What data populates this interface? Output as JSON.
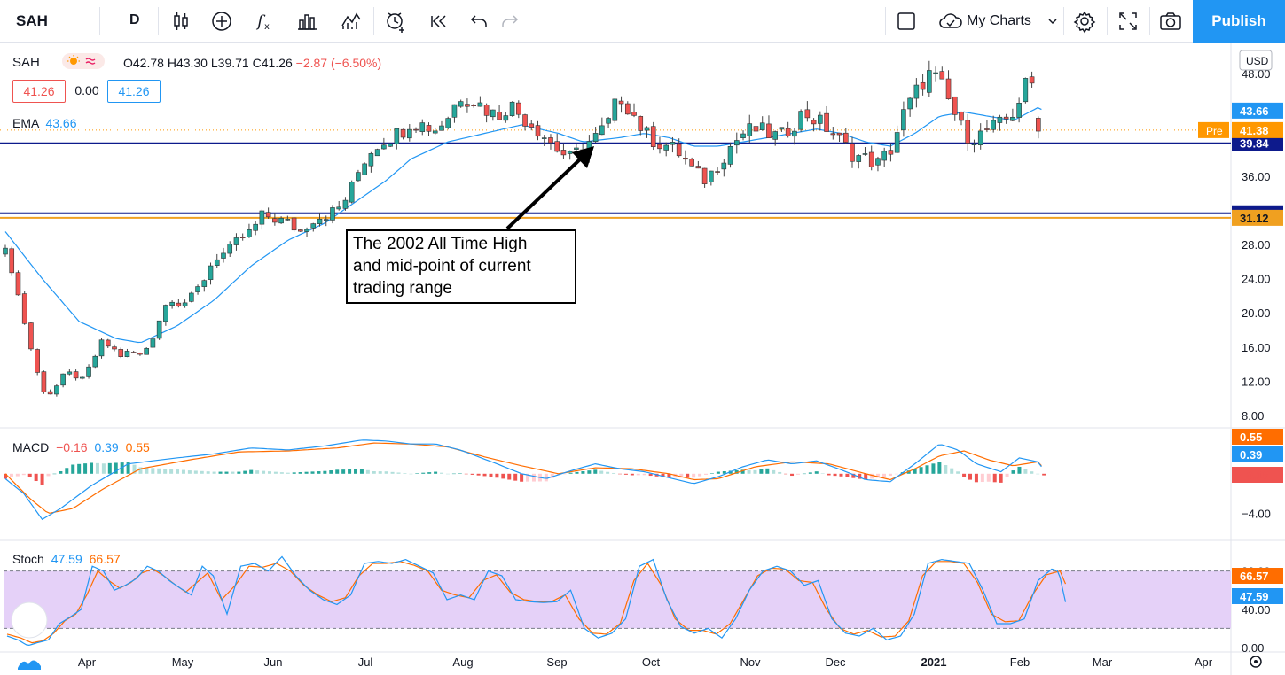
{
  "toolbar": {
    "symbol": "SAH",
    "interval": "D",
    "my_charts": "My Charts",
    "publish": "Publish",
    "icons": [
      "candles-icon",
      "add-indicator-icon",
      "fx-icon",
      "bar-chart-icon",
      "compare-icon",
      "alert-icon",
      "replay-icon",
      "undo-icon",
      "redo-icon",
      "layout-icon",
      "cloud-icon",
      "chevron-down-icon",
      "gear-icon",
      "fullscreen-icon",
      "camera-icon"
    ]
  },
  "legend": {
    "symbol": "SAH",
    "open": "O42.78",
    "high": "H43.30",
    "low": "L39.71",
    "close": "C41.26",
    "change": "−2.87 (−6.50%)",
    "bid": "41.26",
    "spread": "0.00",
    "ask": "41.26",
    "ema_label": "EMA",
    "ema_value": "43.66",
    "macd_label": "MACD",
    "macd_hist": "−0.16",
    "macd_line": "0.39",
    "macd_signal": "0.55",
    "stoch_label": "Stoch",
    "stoch_k": "47.59",
    "stoch_d": "66.57"
  },
  "annotation": {
    "line1": "The 2002 All Time High",
    "line2": "and mid-point of current",
    "line3": "trading range"
  },
  "chart_data": {
    "type": "candlestick",
    "currency": "USD",
    "x_labels": [
      "Apr",
      "May",
      "Jun",
      "Jul",
      "Aug",
      "Sep",
      "Oct",
      "Nov",
      "Dec",
      "2021",
      "Feb",
      "Mar",
      "Apr"
    ],
    "price_ticks": [
      "48.00",
      "44.00",
      "40.00",
      "36.00",
      "32.00",
      "28.00",
      "24.00",
      "20.00",
      "16.00",
      "12.00",
      "8.00"
    ],
    "price_ylim": [
      6.0,
      50.0
    ],
    "macd_ticks": [
      "−4.00"
    ],
    "stoch_ticks": [
      "80.00",
      "40.00",
      "0.00"
    ],
    "horizontal_levels": [
      {
        "value": 39.84,
        "label": "39.84",
        "color": "#0d1a8c"
      },
      {
        "value": 31.65,
        "label": "31.65",
        "color": "#0d1a8c"
      },
      {
        "value": 31.12,
        "label": "31.12",
        "color": "#f0a020"
      }
    ],
    "price_labels": [
      {
        "value": 43.66,
        "label": "43.66",
        "color": "#2196f3"
      },
      {
        "value": 41.38,
        "label": "41.38",
        "color": "#ff9800",
        "tag": "Pre"
      }
    ],
    "macd_labels": [
      {
        "label": "0.55",
        "color": "#ff6d00"
      },
      {
        "label": "0.39",
        "color": "#2196f3"
      },
      {
        "label": "−0.16",
        "color": "#ef5350"
      }
    ],
    "stoch_labels": [
      {
        "label": "66.57",
        "color": "#ff6d00"
      },
      {
        "label": "47.59",
        "color": "#2196f3"
      }
    ],
    "price_anchors": [
      [
        0,
        27.0
      ],
      [
        6,
        25.0
      ],
      [
        12,
        21.0
      ],
      [
        18,
        17.5
      ],
      [
        24,
        14.0
      ],
      [
        30,
        11.0
      ],
      [
        38,
        10.5
      ],
      [
        46,
        12.5
      ],
      [
        54,
        13.0
      ],
      [
        62,
        12.0
      ],
      [
        70,
        14.0
      ],
      [
        78,
        16.5
      ],
      [
        86,
        16.0
      ],
      [
        94,
        15.0
      ],
      [
        102,
        15.5
      ],
      [
        110,
        15.0
      ],
      [
        118,
        16.5
      ],
      [
        126,
        19.5
      ],
      [
        134,
        22.0
      ],
      [
        142,
        21.0
      ],
      [
        150,
        21.5
      ],
      [
        160,
        23.5
      ],
      [
        170,
        26.5
      ],
      [
        180,
        27.0
      ],
      [
        190,
        28.5
      ],
      [
        200,
        29.5
      ],
      [
        210,
        31.5
      ],
      [
        220,
        31.0
      ],
      [
        230,
        30.5
      ],
      [
        240,
        29.5
      ],
      [
        250,
        31.0
      ],
      [
        260,
        31.5
      ],
      [
        270,
        32.0
      ],
      [
        280,
        34.0
      ],
      [
        290,
        37.5
      ],
      [
        300,
        39.5
      ],
      [
        310,
        40.5
      ],
      [
        320,
        41.0
      ],
      [
        330,
        42.5
      ],
      [
        340,
        42.0
      ],
      [
        350,
        41.5
      ],
      [
        360,
        43.0
      ],
      [
        370,
        45.5
      ],
      [
        380,
        45.0
      ],
      [
        390,
        44.0
      ],
      [
        400,
        43.0
      ],
      [
        410,
        44.5
      ],
      [
        420,
        43.0
      ],
      [
        430,
        42.0
      ],
      [
        440,
        40.5
      ],
      [
        450,
        39.0
      ],
      [
        460,
        38.0
      ],
      [
        470,
        39.5
      ],
      [
        480,
        40.5
      ],
      [
        490,
        42.0
      ],
      [
        500,
        45.5
      ],
      [
        510,
        43.5
      ],
      [
        520,
        41.0
      ],
      [
        530,
        40.0
      ],
      [
        540,
        39.5
      ],
      [
        550,
        38.5
      ],
      [
        560,
        36.5
      ],
      [
        570,
        35.5
      ],
      [
        580,
        37.5
      ],
      [
        590,
        39.5
      ],
      [
        600,
        41.0
      ],
      [
        610,
        41.5
      ],
      [
        620,
        41.0
      ],
      [
        630,
        40.5
      ],
      [
        640,
        42.0
      ],
      [
        650,
        43.5
      ],
      [
        660,
        42.5
      ],
      [
        670,
        41.5
      ],
      [
        680,
        40.0
      ],
      [
        690,
        38.5
      ],
      [
        700,
        38.0
      ],
      [
        710,
        37.5
      ],
      [
        720,
        39.0
      ],
      [
        730,
        43.0
      ],
      [
        740,
        45.5
      ],
      [
        750,
        48.0
      ],
      [
        760,
        47.0
      ],
      [
        770,
        44.0
      ],
      [
        780,
        41.0
      ],
      [
        790,
        40.5
      ],
      [
        800,
        41.5
      ],
      [
        810,
        42.0
      ],
      [
        820,
        43.5
      ],
      [
        830,
        46.5
      ],
      [
        840,
        47.0
      ],
      [
        845,
        41.26
      ]
    ],
    "ema_anchors": [
      [
        0,
        29.5
      ],
      [
        30,
        24.0
      ],
      [
        60,
        19.0
      ],
      [
        90,
        17.0
      ],
      [
        110,
        16.5
      ],
      [
        140,
        18.5
      ],
      [
        170,
        21.5
      ],
      [
        200,
        25.5
      ],
      [
        230,
        28.5
      ],
      [
        260,
        30.5
      ],
      [
        290,
        33.5
      ],
      [
        310,
        35.5
      ],
      [
        330,
        38.0
      ],
      [
        360,
        40.0
      ],
      [
        390,
        41.0
      ],
      [
        420,
        42.0
      ],
      [
        450,
        41.0
      ],
      [
        470,
        40.0
      ],
      [
        500,
        40.5
      ],
      [
        520,
        41.0
      ],
      [
        540,
        40.5
      ],
      [
        560,
        39.5
      ],
      [
        580,
        39.5
      ],
      [
        600,
        40.0
      ],
      [
        620,
        40.5
      ],
      [
        640,
        41.0
      ],
      [
        660,
        41.5
      ],
      [
        680,
        41.0
      ],
      [
        700,
        40.0
      ],
      [
        720,
        39.5
      ],
      [
        740,
        41.0
      ],
      [
        760,
        43.0
      ],
      [
        780,
        43.5
      ],
      [
        800,
        43.0
      ],
      [
        820,
        42.5
      ],
      [
        840,
        44.0
      ],
      [
        845,
        43.66
      ]
    ],
    "macd_line_anchors": [
      [
        0,
        -0.5
      ],
      [
        15,
        -2.0
      ],
      [
        30,
        -4.6
      ],
      [
        45,
        -3.5
      ],
      [
        70,
        -1.2
      ],
      [
        100,
        1.0
      ],
      [
        140,
        1.6
      ],
      [
        170,
        2.0
      ],
      [
        200,
        2.6
      ],
      [
        230,
        2.4
      ],
      [
        260,
        2.8
      ],
      [
        290,
        3.4
      ],
      [
        310,
        3.3
      ],
      [
        330,
        3.0
      ],
      [
        350,
        3.0
      ],
      [
        370,
        2.4
      ],
      [
        400,
        1.0
      ],
      [
        420,
        0.0
      ],
      [
        440,
        -0.5
      ],
      [
        460,
        0.3
      ],
      [
        480,
        1.0
      ],
      [
        500,
        0.5
      ],
      [
        520,
        0.2
      ],
      [
        540,
        -0.4
      ],
      [
        560,
        -1.0
      ],
      [
        580,
        -0.3
      ],
      [
        600,
        0.7
      ],
      [
        620,
        1.4
      ],
      [
        640,
        1.0
      ],
      [
        660,
        1.3
      ],
      [
        680,
        0.4
      ],
      [
        700,
        -0.6
      ],
      [
        720,
        -0.8
      ],
      [
        740,
        1.0
      ],
      [
        760,
        3.0
      ],
      [
        775,
        2.4
      ],
      [
        790,
        1.0
      ],
      [
        810,
        0.2
      ],
      [
        825,
        1.6
      ],
      [
        840,
        1.2
      ],
      [
        845,
        0.39
      ]
    ],
    "macd_signal_anchors": [
      [
        0,
        0.0
      ],
      [
        20,
        -2.5
      ],
      [
        35,
        -4.0
      ],
      [
        55,
        -3.5
      ],
      [
        80,
        -1.5
      ],
      [
        110,
        0.5
      ],
      [
        150,
        1.4
      ],
      [
        190,
        2.2
      ],
      [
        230,
        2.3
      ],
      [
        270,
        2.6
      ],
      [
        300,
        3.1
      ],
      [
        330,
        3.0
      ],
      [
        360,
        2.7
      ],
      [
        390,
        1.7
      ],
      [
        420,
        0.8
      ],
      [
        450,
        0.0
      ],
      [
        480,
        0.6
      ],
      [
        510,
        0.5
      ],
      [
        540,
        0.0
      ],
      [
        560,
        -0.6
      ],
      [
        580,
        -0.5
      ],
      [
        610,
        0.7
      ],
      [
        640,
        1.2
      ],
      [
        670,
        1.0
      ],
      [
        700,
        0.0
      ],
      [
        720,
        -0.6
      ],
      [
        740,
        0.5
      ],
      [
        760,
        1.8
      ],
      [
        780,
        2.3
      ],
      [
        800,
        1.4
      ],
      [
        820,
        0.8
      ],
      [
        840,
        1.2
      ],
      [
        845,
        0.55
      ]
    ],
    "macd_ylim": [
      -6.0,
      4.0
    ],
    "stoch_k_anchors": [
      [
        0,
        12
      ],
      [
        8,
        8
      ],
      [
        15,
        2
      ],
      [
        22,
        5
      ],
      [
        30,
        8
      ],
      [
        38,
        25
      ],
      [
        46,
        32
      ],
      [
        54,
        40
      ],
      [
        62,
        85
      ],
      [
        70,
        80
      ],
      [
        78,
        60
      ],
      [
        86,
        65
      ],
      [
        94,
        72
      ],
      [
        102,
        85
      ],
      [
        110,
        80
      ],
      [
        118,
        70
      ],
      [
        126,
        62
      ],
      [
        134,
        55
      ],
      [
        142,
        85
      ],
      [
        150,
        75
      ],
      [
        160,
        35
      ],
      [
        170,
        85
      ],
      [
        180,
        88
      ],
      [
        190,
        80
      ],
      [
        200,
        95
      ],
      [
        210,
        75
      ],
      [
        220,
        60
      ],
      [
        230,
        50
      ],
      [
        240,
        45
      ],
      [
        250,
        55
      ],
      [
        260,
        88
      ],
      [
        270,
        90
      ],
      [
        280,
        88
      ],
      [
        290,
        92
      ],
      [
        300,
        85
      ],
      [
        310,
        78
      ],
      [
        320,
        50
      ],
      [
        330,
        55
      ],
      [
        340,
        50
      ],
      [
        350,
        80
      ],
      [
        360,
        75
      ],
      [
        370,
        50
      ],
      [
        380,
        48
      ],
      [
        390,
        47
      ],
      [
        400,
        48
      ],
      [
        410,
        60
      ],
      [
        420,
        20
      ],
      [
        430,
        10
      ],
      [
        440,
        15
      ],
      [
        450,
        30
      ],
      [
        460,
        85
      ],
      [
        470,
        92
      ],
      [
        480,
        50
      ],
      [
        490,
        22
      ],
      [
        500,
        15
      ],
      [
        510,
        20
      ],
      [
        520,
        10
      ],
      [
        530,
        30
      ],
      [
        540,
        60
      ],
      [
        550,
        80
      ],
      [
        560,
        85
      ],
      [
        570,
        80
      ],
      [
        580,
        65
      ],
      [
        590,
        70
      ],
      [
        600,
        30
      ],
      [
        610,
        15
      ],
      [
        620,
        12
      ],
      [
        630,
        20
      ],
      [
        640,
        8
      ],
      [
        650,
        12
      ],
      [
        660,
        35
      ],
      [
        670,
        88
      ],
      [
        680,
        92
      ],
      [
        690,
        90
      ],
      [
        700,
        88
      ],
      [
        710,
        60
      ],
      [
        720,
        25
      ],
      [
        730,
        25
      ],
      [
        740,
        30
      ],
      [
        750,
        70
      ],
      [
        760,
        82
      ],
      [
        765,
        80
      ],
      [
        770,
        47.59
      ]
    ],
    "stoch_d_anchors": [
      [
        0,
        14
      ],
      [
        10,
        10
      ],
      [
        18,
        5
      ],
      [
        26,
        7
      ],
      [
        34,
        15
      ],
      [
        42,
        28
      ],
      [
        50,
        35
      ],
      [
        58,
        55
      ],
      [
        66,
        80
      ],
      [
        74,
        70
      ],
      [
        82,
        62
      ],
      [
        90,
        68
      ],
      [
        98,
        78
      ],
      [
        106,
        82
      ],
      [
        114,
        75
      ],
      [
        122,
        66
      ],
      [
        130,
        58
      ],
      [
        138,
        68
      ],
      [
        146,
        78
      ],
      [
        156,
        50
      ],
      [
        166,
        65
      ],
      [
        176,
        85
      ],
      [
        186,
        84
      ],
      [
        196,
        88
      ],
      [
        206,
        80
      ],
      [
        216,
        65
      ],
      [
        226,
        55
      ],
      [
        236,
        48
      ],
      [
        246,
        52
      ],
      [
        256,
        75
      ],
      [
        266,
        88
      ],
      [
        276,
        88
      ],
      [
        286,
        90
      ],
      [
        296,
        86
      ],
      [
        306,
        80
      ],
      [
        316,
        60
      ],
      [
        326,
        55
      ],
      [
        336,
        52
      ],
      [
        346,
        70
      ],
      [
        356,
        76
      ],
      [
        366,
        58
      ],
      [
        376,
        50
      ],
      [
        386,
        48
      ],
      [
        396,
        48
      ],
      [
        406,
        55
      ],
      [
        416,
        30
      ],
      [
        426,
        15
      ],
      [
        436,
        14
      ],
      [
        446,
        25
      ],
      [
        456,
        70
      ],
      [
        466,
        88
      ],
      [
        476,
        65
      ],
      [
        486,
        30
      ],
      [
        496,
        18
      ],
      [
        506,
        18
      ],
      [
        516,
        14
      ],
      [
        526,
        25
      ],
      [
        536,
        50
      ],
      [
        546,
        75
      ],
      [
        556,
        83
      ],
      [
        566,
        82
      ],
      [
        576,
        70
      ],
      [
        586,
        68
      ],
      [
        596,
        40
      ],
      [
        606,
        20
      ],
      [
        616,
        14
      ],
      [
        626,
        18
      ],
      [
        636,
        11
      ],
      [
        646,
        12
      ],
      [
        656,
        28
      ],
      [
        666,
        75
      ],
      [
        676,
        90
      ],
      [
        686,
        90
      ],
      [
        696,
        88
      ],
      [
        706,
        68
      ],
      [
        716,
        35
      ],
      [
        726,
        27
      ],
      [
        736,
        28
      ],
      [
        746,
        55
      ],
      [
        756,
        76
      ],
      [
        766,
        80
      ],
      [
        770,
        66.57
      ]
    ]
  }
}
